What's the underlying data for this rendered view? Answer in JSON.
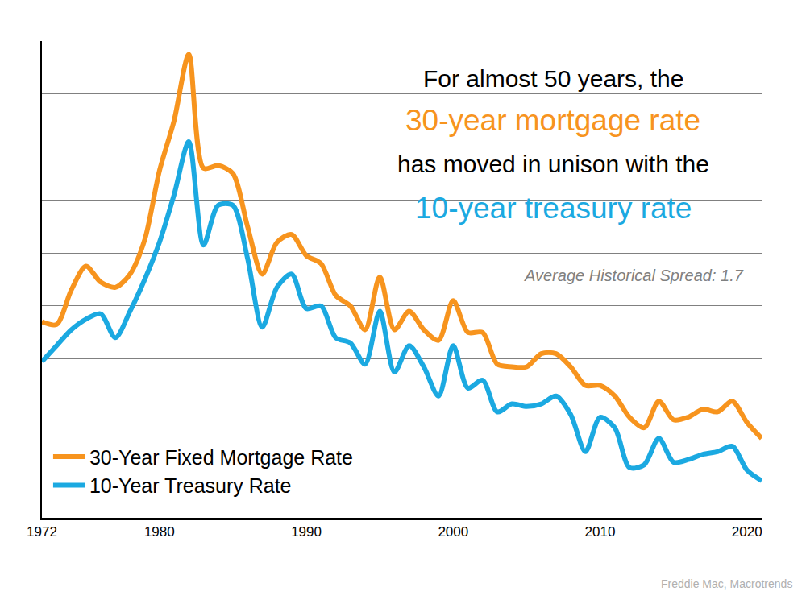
{
  "chart_data": {
    "type": "line",
    "title": [
      "For almost 50 years, the",
      "30-year mortgage rate",
      "has moved in unison with the",
      "10-year treasury rate"
    ],
    "annotations": [
      "Average Historical Spread: 1.7"
    ],
    "source": "Freddie Mac, Macrotrends",
    "x": [
      1972,
      1973,
      1974,
      1975,
      1976,
      1977,
      1978,
      1979,
      1980,
      1981,
      1982,
      1983,
      1984,
      1985,
      1986,
      1987,
      1988,
      1989,
      1990,
      1991,
      1992,
      1993,
      1994,
      1995,
      1996,
      1997,
      1998,
      1999,
      2000,
      2001,
      2002,
      2003,
      2004,
      2005,
      2006,
      2007,
      2008,
      2009,
      2010,
      2011,
      2012,
      2013,
      2014,
      2015,
      2016,
      2017,
      2018,
      2019,
      2020,
      2021
    ],
    "series": [
      {
        "name": "30-Year Fixed Mortgage Rate",
        "color": "#f7941e",
        "values": [
          7.4,
          7.3,
          8.6,
          9.5,
          8.9,
          8.7,
          9.2,
          10.5,
          13.1,
          15.0,
          17.5,
          13.2,
          13.3,
          13.0,
          11.0,
          9.2,
          10.4,
          10.7,
          9.9,
          9.6,
          8.4,
          8.0,
          7.1,
          9.1,
          7.1,
          7.8,
          7.1,
          6.7,
          8.2,
          7.0,
          7.0,
          5.8,
          5.7,
          5.7,
          6.2,
          6.2,
          5.7,
          5.0,
          5.0,
          4.6,
          3.8,
          3.4,
          4.4,
          3.7,
          3.8,
          4.1,
          4.0,
          4.4,
          3.6,
          3.0
        ]
      },
      {
        "name": "10-Year Treasury Rate",
        "color": "#1ba9e1",
        "values": [
          5.9,
          6.5,
          7.1,
          7.5,
          7.7,
          6.8,
          7.8,
          9.0,
          10.4,
          12.2,
          14.2,
          10.3,
          11.8,
          11.8,
          9.8,
          7.2,
          8.7,
          9.2,
          7.9,
          8.0,
          6.8,
          6.6,
          5.8,
          7.8,
          5.5,
          6.5,
          5.7,
          4.6,
          6.5,
          4.9,
          5.2,
          4.0,
          4.3,
          4.2,
          4.3,
          4.6,
          3.9,
          2.5,
          3.8,
          3.4,
          1.9,
          2.0,
          3.0,
          2.1,
          2.2,
          2.4,
          2.5,
          2.7,
          1.8,
          1.4
        ]
      }
    ],
    "xlim": [
      1972,
      2021
    ],
    "xticks": [
      1972,
      1980,
      1990,
      2000,
      2010,
      2020
    ],
    "ylim": [
      0,
      18
    ],
    "yticks": [
      0,
      2,
      4,
      6,
      8,
      10,
      12,
      14,
      16,
      18
    ],
    "grid": true,
    "legend": "lower left",
    "tick_labels": "x"
  }
}
